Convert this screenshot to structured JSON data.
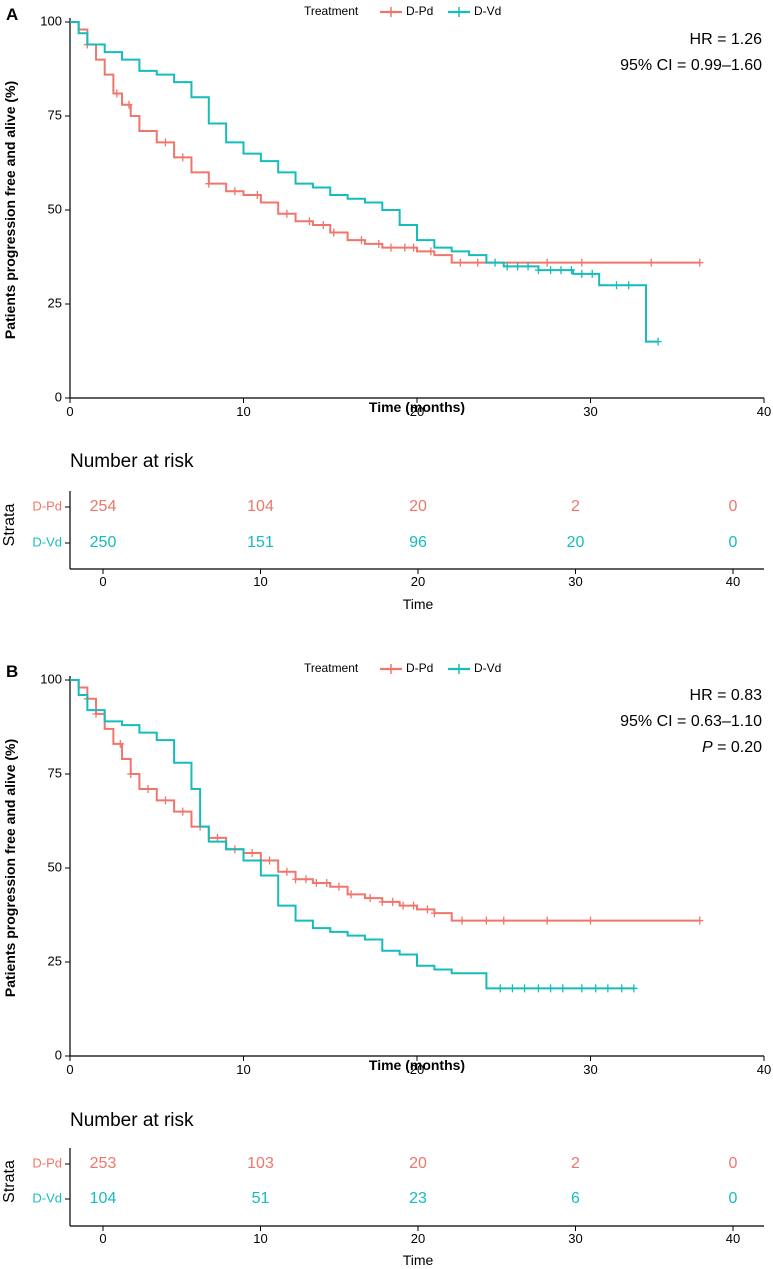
{
  "chart_data": [
    {
      "type": "line",
      "subtype": "kaplan-meier",
      "panel_label": "A",
      "legend": {
        "title": "Treatment",
        "entries": [
          "D-Pd",
          "D-Vd"
        ],
        "placement": "top-center"
      },
      "ylabel": "Patients progression free and alive (%)",
      "xlabel": "Time (months)",
      "xlim": [
        0,
        40
      ],
      "ylim": [
        0,
        100
      ],
      "xticks": [
        0,
        10,
        20,
        30,
        40
      ],
      "yticks": [
        0,
        25,
        50,
        75,
        100
      ],
      "stats": {
        "hr": "HR = 1.26",
        "ci": "95% CI = 0.99–1.60"
      },
      "series": [
        {
          "name": "D-Pd",
          "color": "#F0756B",
          "x": [
            0,
            0.5,
            1,
            1.5,
            2,
            2.5,
            3,
            3.5,
            4,
            5,
            6,
            7,
            8,
            9,
            10,
            11,
            12,
            13,
            14,
            15,
            16,
            17,
            18,
            19,
            20,
            21,
            22,
            24,
            26,
            30,
            36.3
          ],
          "y": [
            100,
            98,
            94,
            90,
            86,
            81,
            78,
            75,
            71,
            68,
            64,
            60,
            57,
            55,
            54,
            52,
            49,
            47,
            46,
            44,
            42,
            41,
            40,
            40,
            39,
            38,
            36,
            36,
            36,
            36,
            36
          ],
          "censor_x": [
            1,
            2.7,
            3.4,
            5.5,
            6.5,
            8,
            9.5,
            10.8,
            12.5,
            13.8,
            14.6,
            15.2,
            16.8,
            17.8,
            18.5,
            19.3,
            19.8,
            20.8,
            22.5,
            23.5,
            27.5,
            29.5,
            33.5,
            36.3
          ]
        },
        {
          "name": "D-Vd",
          "color": "#14BCBC",
          "x": [
            0,
            0.5,
            1,
            2,
            3,
            4,
            5,
            6,
            7,
            8,
            9,
            10,
            11,
            12,
            13,
            14,
            15,
            16,
            17,
            18,
            19,
            20,
            21,
            22,
            23,
            24,
            25,
            26,
            27,
            28,
            29,
            30,
            30.5,
            33.2,
            33.2,
            33.9
          ],
          "y": [
            100,
            97,
            94,
            92,
            90,
            87,
            86,
            84,
            80,
            73,
            68,
            65,
            63,
            60,
            57,
            56,
            54,
            53,
            52,
            50,
            46,
            42,
            40,
            39,
            38,
            36,
            35,
            35,
            34,
            34,
            33,
            33,
            30,
            30,
            15,
            15
          ],
          "censor_x": [
            24.5,
            25.2,
            25.8,
            26.4,
            27,
            27.7,
            28.3,
            28.9,
            29.5,
            30.1,
            31.5,
            32.2,
            33.9
          ]
        }
      ],
      "risk_table": {
        "title": "Number at risk",
        "strata_title": "Strata",
        "x_title": "Time",
        "times": [
          0,
          10,
          20,
          30,
          40
        ],
        "rows": [
          {
            "label": "D-Pd",
            "values": [
              "254",
              "104",
              "20",
              "2",
              "0"
            ]
          },
          {
            "label": "D-Vd",
            "values": [
              "250",
              "151",
              "96",
              "20",
              "0"
            ]
          }
        ]
      }
    },
    {
      "type": "line",
      "subtype": "kaplan-meier",
      "panel_label": "B",
      "legend": {
        "title": "Treatment",
        "entries": [
          "D-Pd",
          "D-Vd"
        ],
        "placement": "top-center"
      },
      "ylabel": "Patients progression free and alive (%)",
      "xlabel": "Time (months)",
      "xlim": [
        0,
        40
      ],
      "ylim": [
        0,
        100
      ],
      "xticks": [
        0,
        10,
        20,
        30,
        40
      ],
      "yticks": [
        0,
        25,
        50,
        75,
        100
      ],
      "stats": {
        "hr": "HR = 0.83",
        "ci": "95% CI = 0.63–1.10",
        "p_symbol": "P",
        "p_rest": " = 0.20"
      },
      "series": [
        {
          "name": "D-Pd",
          "color": "#F0756B",
          "x": [
            0,
            0.5,
            1,
            1.5,
            2,
            2.5,
            3,
            3.5,
            4,
            5,
            6,
            7,
            8,
            9,
            10,
            11,
            12,
            13,
            14,
            15,
            16,
            17,
            18,
            19,
            20,
            21,
            22,
            30,
            36.3
          ],
          "y": [
            100,
            98,
            95,
            91,
            87,
            83,
            79,
            75,
            71,
            68,
            65,
            61,
            58,
            55,
            54,
            52,
            49,
            47,
            46,
            45,
            43,
            42,
            41,
            40,
            39,
            38,
            36,
            36,
            36
          ],
          "censor_x": [
            1,
            1.5,
            2.9,
            3.5,
            4.5,
            5.5,
            6.5,
            7.5,
            8.5,
            9.5,
            10.5,
            11.5,
            12.5,
            13,
            13.6,
            14.2,
            14.8,
            15.5,
            16.2,
            17.3,
            18,
            18.6,
            19.2,
            19.8,
            20.6,
            21,
            22.6,
            24,
            25,
            27.5,
            30,
            36.3
          ]
        },
        {
          "name": "D-Vd",
          "color": "#14BCBC",
          "x": [
            0,
            0.5,
            1,
            2,
            3,
            4,
            5,
            6,
            7,
            7.5,
            8,
            9,
            10,
            11,
            12,
            13,
            14,
            15,
            16,
            17,
            18,
            19,
            20,
            21,
            22,
            23,
            24,
            25,
            32.5
          ],
          "y": [
            100,
            96,
            92,
            89,
            88,
            86,
            84,
            78,
            71,
            61,
            57,
            55,
            52,
            48,
            40,
            36,
            34,
            33,
            32,
            31,
            28,
            27,
            24,
            23,
            22,
            22,
            18,
            18,
            18
          ],
          "censor_x": [
            24.8,
            25.5,
            26.2,
            27,
            27.7,
            28.4,
            29.5,
            30.3,
            31,
            31.8,
            32.5
          ]
        }
      ],
      "risk_table": {
        "title": "Number at risk",
        "strata_title": "Strata",
        "x_title": "Time",
        "times": [
          0,
          10,
          20,
          30,
          40
        ],
        "rows": [
          {
            "label": "D-Pd",
            "values": [
              "253",
              "103",
              "20",
              "2",
              "0"
            ]
          },
          {
            "label": "D-Vd",
            "values": [
              "104",
              "51",
              "23",
              "6",
              "0"
            ]
          }
        ]
      }
    }
  ]
}
